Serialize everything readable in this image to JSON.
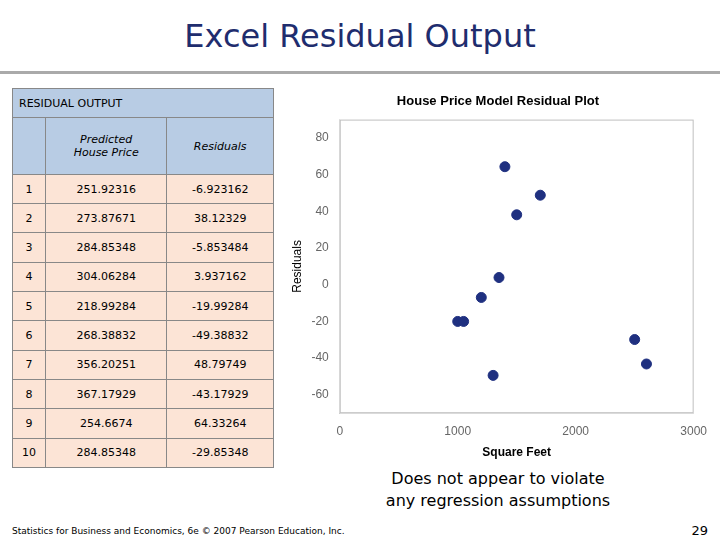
{
  "page_title": "Excel Residual Output",
  "table": {
    "title": "RESIDUAL OUTPUT",
    "columns": [
      "Predicted\nHouse Price",
      "Residuals"
    ],
    "rows": [
      [
        1,
        "251.92316",
        "-6.923162"
      ],
      [
        2,
        "273.87671",
        "38.12329"
      ],
      [
        3,
        "284.85348",
        "-5.853484"
      ],
      [
        4,
        "304.06284",
        "3.937162"
      ],
      [
        5,
        "218.99284",
        "-19.99284"
      ],
      [
        6,
        "268.38832",
        "-49.38832"
      ],
      [
        7,
        "356.20251",
        "48.79749"
      ],
      [
        8,
        "367.17929",
        "-43.17929"
      ],
      [
        9,
        "254.6674",
        "64.33264"
      ],
      [
        10,
        "284.85348",
        "-29.85348"
      ]
    ]
  },
  "annotations": [
    "Does not appear to violate",
    "any regression assumptions"
  ],
  "footer": {
    "text": "Statistics for Business and Economics, 6e © 2007 Pearson Education, Inc.",
    "page": "29"
  },
  "chart_data": {
    "type": "scatter",
    "title": "House Price Model Residual Plot",
    "x_label": "Square Feet",
    "y_label": "Residuals",
    "x": [
      1000,
      1400,
      1200,
      1500,
      1050,
      1300,
      1700,
      2600,
      1350,
      2500
    ],
    "values": [
      -19.99284,
      64.33264,
      -6.923162,
      38.12329,
      -19.99284,
      -49.38832,
      48.79749,
      -43.17929,
      3.937162,
      -29.85348
    ],
    "color": "#1f3080",
    "xlim": [
      0,
      3000
    ],
    "xticks": [
      0,
      1000,
      2000,
      3000
    ],
    "ylim": [
      -70,
      90
    ],
    "yticks": [
      -60,
      -40,
      -20,
      0,
      20,
      40,
      60,
      80
    ],
    "grid": false
  }
}
